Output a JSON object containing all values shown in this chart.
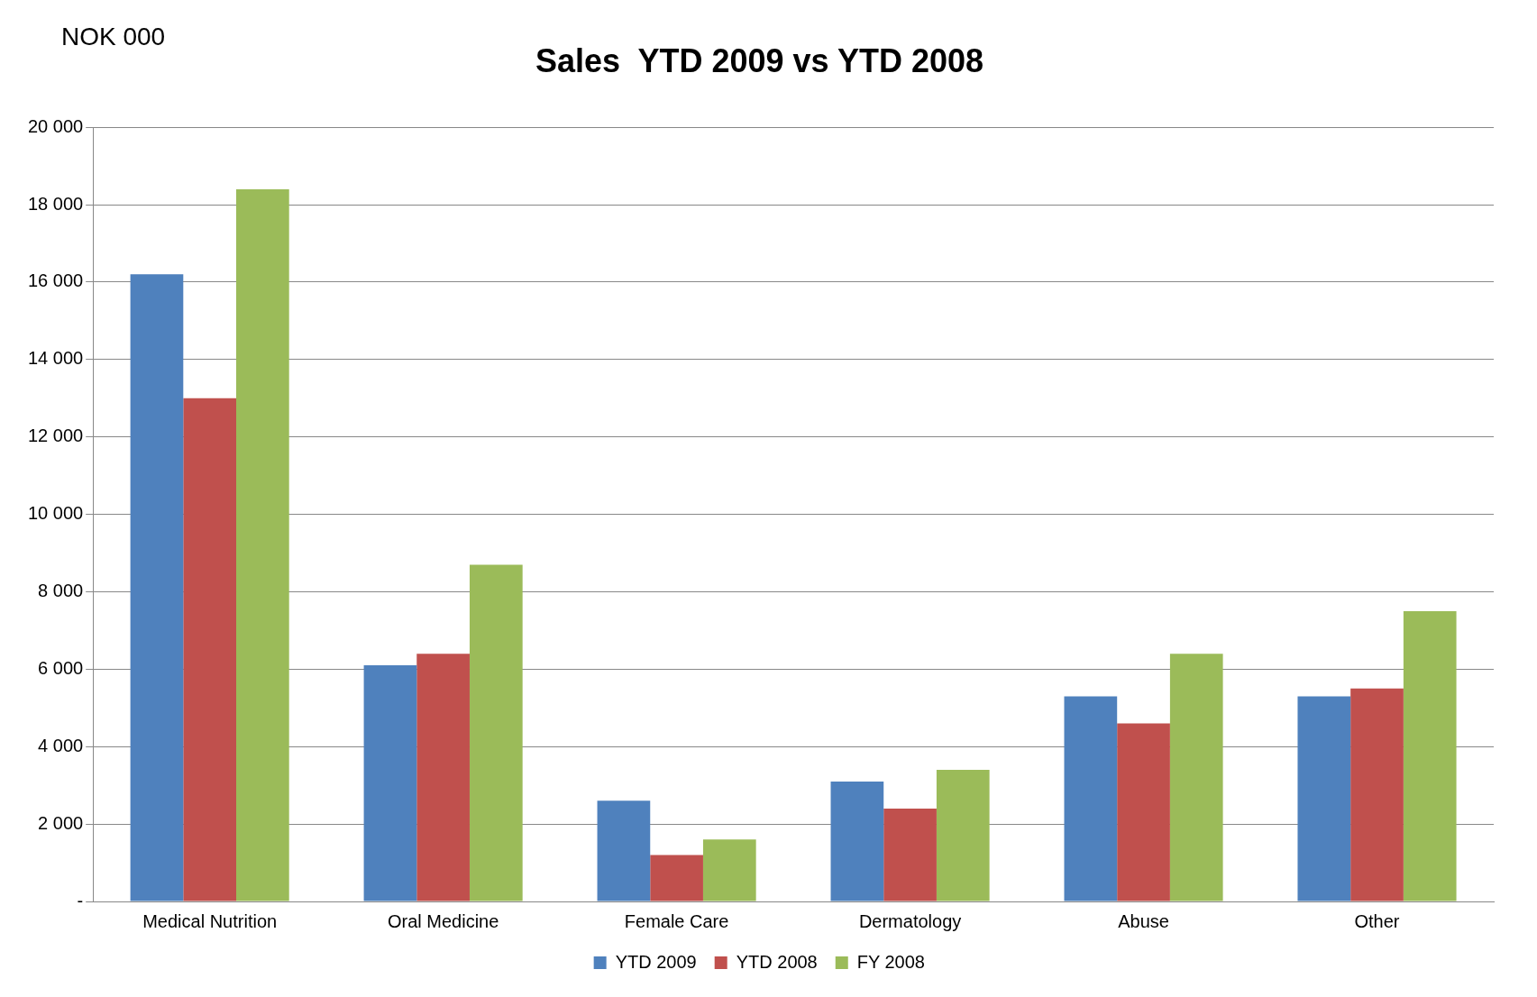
{
  "chart_data": {
    "type": "bar",
    "title": "Sales  YTD 2009 vs YTD 2008",
    "annotations": [
      "NOK 000"
    ],
    "categories": [
      "Medical Nutrition",
      "Oral Medicine",
      "Female Care",
      "Dermatology",
      "Abuse",
      "Other"
    ],
    "series": [
      {
        "name": "YTD 2009",
        "color": "#4f81bd",
        "values": [
          16200,
          6100,
          2600,
          3100,
          5300,
          5300
        ]
      },
      {
        "name": "YTD 2008",
        "color": "#c0504d",
        "values": [
          13000,
          6400,
          1200,
          2400,
          4600,
          5500
        ]
      },
      {
        "name": "FY 2008",
        "color": "#9bbb59",
        "values": [
          18400,
          8700,
          1600,
          3400,
          6400,
          7500
        ]
      }
    ],
    "ylim": [
      0,
      20000
    ],
    "yticks": [
      {
        "value": 0,
        "label": "-"
      },
      {
        "value": 2000,
        "label": "2 000"
      },
      {
        "value": 4000,
        "label": "4 000"
      },
      {
        "value": 6000,
        "label": "6 000"
      },
      {
        "value": 8000,
        "label": "8 000"
      },
      {
        "value": 10000,
        "label": "10 000"
      },
      {
        "value": 12000,
        "label": "12 000"
      },
      {
        "value": 14000,
        "label": "14 000"
      },
      {
        "value": 16000,
        "label": "16 000"
      },
      {
        "value": 18000,
        "label": "18 000"
      },
      {
        "value": 20000,
        "label": "20 000"
      }
    ],
    "grid": "y",
    "legend": "bottom"
  }
}
